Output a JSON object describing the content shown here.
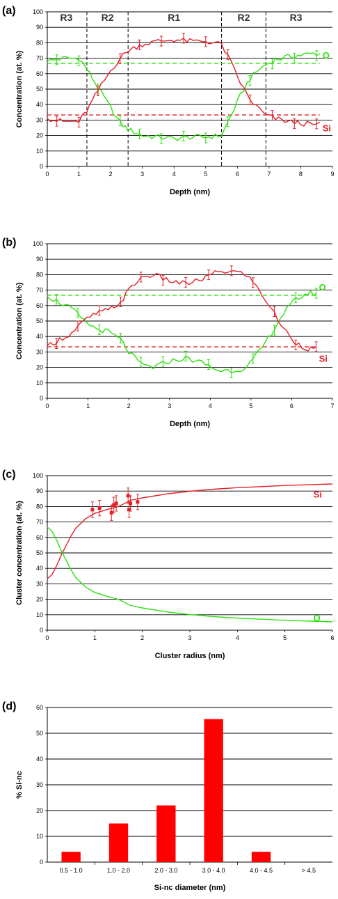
{
  "colors": {
    "si": "#e41e26",
    "o": "#2ee00f",
    "bar": "#ff0000",
    "grid": "#000000"
  },
  "chart_data": [
    {
      "id": "a",
      "panel_label": "(a)",
      "type": "line",
      "xlabel": "Depth (nm)",
      "ylabel": "Concentration (at. %)",
      "xlim": [
        0,
        9
      ],
      "ylim": [
        0,
        100
      ],
      "x_ticks": [
        "0",
        "1",
        "2",
        "3",
        "4",
        "5",
        "6",
        "7",
        "8",
        "9"
      ],
      "y_ticks": [
        "0",
        "10",
        "20",
        "30",
        "40",
        "50",
        "60",
        "70",
        "80",
        "90",
        "100"
      ],
      "grid": "horizontal",
      "region_lines": [
        1.25,
        2.55,
        5.5,
        6.9
      ],
      "regions": [
        {
          "label": "R3",
          "x": 0.6
        },
        {
          "label": "R2",
          "x": 1.9
        },
        {
          "label": "R1",
          "x": 4.0
        },
        {
          "label": "R2",
          "x": 6.2
        },
        {
          "label": "R3",
          "x": 7.85
        }
      ],
      "reference_lines": [
        {
          "series": "O",
          "y": 66.7,
          "x0": 0,
          "x1": 8.6
        },
        {
          "series": "Si",
          "y": 33.3,
          "x0": 0,
          "x1": 8.6
        }
      ],
      "series": [
        {
          "name": "O",
          "label": "O",
          "label_y": 72,
          "x": [
            0,
            0.5,
            1.0,
            1.25,
            1.6,
            2.0,
            2.3,
            2.55,
            3.0,
            3.5,
            4.0,
            4.5,
            5.0,
            5.5,
            5.8,
            6.1,
            6.4,
            6.7,
            6.9,
            7.2,
            7.6,
            8.0,
            8.4,
            8.6
          ],
          "y": [
            68,
            70,
            70,
            63,
            51,
            38,
            28,
            24,
            20,
            19,
            18,
            19,
            19,
            20,
            33,
            46,
            57,
            63,
            66,
            69,
            71,
            72,
            73,
            73
          ]
        },
        {
          "name": "Si",
          "label": "Si",
          "label_y": 25,
          "x": [
            0,
            0.5,
            1.0,
            1.25,
            1.6,
            2.0,
            2.3,
            2.55,
            3.0,
            3.5,
            4.0,
            4.5,
            5.0,
            5.5,
            5.8,
            6.1,
            6.4,
            6.7,
            6.9,
            7.2,
            7.6,
            8.0,
            8.4,
            8.6
          ],
          "y": [
            31,
            29,
            29,
            36,
            49,
            62,
            70,
            75,
            79,
            81,
            82,
            81,
            81,
            79,
            67,
            54,
            43,
            37,
            33,
            31,
            29,
            28,
            27,
            27
          ]
        }
      ]
    },
    {
      "id": "b",
      "panel_label": "(b)",
      "type": "line",
      "xlabel": "Depth (nm)",
      "ylabel": "Concentration (at. %)",
      "xlim": [
        0,
        7
      ],
      "ylim": [
        0,
        100
      ],
      "x_ticks": [
        "0",
        "1",
        "2",
        "3",
        "4",
        "5",
        "6",
        "7"
      ],
      "y_ticks": [
        "0",
        "10",
        "20",
        "30",
        "40",
        "50",
        "60",
        "70",
        "80",
        "90",
        "100"
      ],
      "grid": "horizontal",
      "reference_lines": [
        {
          "series": "O",
          "y": 66.7,
          "x0": 0,
          "x1": 6.6
        },
        {
          "series": "Si",
          "y": 33.3,
          "x0": 0,
          "x1": 6.6
        }
      ],
      "series": [
        {
          "name": "O",
          "label": "O",
          "label_y": 72,
          "x": [
            0,
            0.3,
            0.6,
            0.9,
            1.2,
            1.5,
            1.8,
            2.0,
            2.3,
            2.6,
            3.0,
            3.4,
            3.8,
            4.2,
            4.6,
            4.9,
            5.2,
            5.5,
            5.8,
            6.1,
            6.4,
            6.6
          ],
          "y": [
            66,
            62,
            58,
            50,
            45,
            43,
            38,
            30,
            22,
            20,
            24,
            26,
            23,
            18,
            18,
            20,
            30,
            42,
            55,
            64,
            68,
            68
          ]
        },
        {
          "name": "Si",
          "label": "Si",
          "label_y": 26,
          "x": [
            0,
            0.3,
            0.6,
            0.9,
            1.2,
            1.5,
            1.8,
            2.0,
            2.3,
            2.6,
            3.0,
            3.4,
            3.8,
            4.2,
            4.6,
            4.9,
            5.2,
            5.5,
            5.8,
            6.1,
            6.4,
            6.6
          ],
          "y": [
            34,
            38,
            42,
            50,
            55,
            57,
            62,
            70,
            78,
            80,
            76,
            74,
            77,
            82,
            82,
            80,
            70,
            58,
            45,
            36,
            32,
            32
          ]
        }
      ]
    },
    {
      "id": "c",
      "panel_label": "(c)",
      "type": "line",
      "xlabel": "Cluster radius (nm)",
      "ylabel": "Cluster concentration (at. %)",
      "xlim": [
        0,
        6
      ],
      "ylim": [
        0,
        100
      ],
      "x_ticks": [
        "0",
        "1",
        "2",
        "3",
        "4",
        "5",
        "6"
      ],
      "y_ticks": [
        "0",
        "10",
        "20",
        "30",
        "40",
        "50",
        "60",
        "70",
        "80",
        "90",
        "100"
      ],
      "grid": "horizontal",
      "series": [
        {
          "name": "Si",
          "label": "Si",
          "label_x": 5.6,
          "label_y": 88,
          "x": [
            0,
            0.1,
            0.2,
            0.3,
            0.4,
            0.5,
            0.6,
            0.8,
            1.0,
            1.25,
            1.5,
            1.75,
            2.0,
            2.5,
            3.0,
            3.5,
            4.0,
            4.5,
            5.0,
            5.5,
            6.0
          ],
          "y": [
            33.3,
            36,
            42,
            49,
            55,
            61,
            66,
            72,
            75.6,
            78,
            80,
            84,
            85.6,
            88.1,
            89.9,
            91.2,
            92.2,
            92.9,
            93.6,
            94.1,
            94.6
          ]
        },
        {
          "name": "O",
          "label": "O",
          "label_x": 5.6,
          "label_y": 8,
          "x": [
            0,
            0.1,
            0.2,
            0.3,
            0.4,
            0.5,
            0.6,
            0.8,
            1.0,
            1.25,
            1.5,
            1.75,
            2.0,
            2.5,
            3.0,
            3.5,
            4.0,
            4.5,
            5.0,
            5.5,
            6.0
          ],
          "y": [
            66.7,
            64,
            58,
            51,
            45,
            39,
            34,
            28,
            24.4,
            22,
            20,
            16,
            14.4,
            11.9,
            10.1,
            8.8,
            7.8,
            7.1,
            6.4,
            5.9,
            5.4
          ]
        }
      ],
      "points": {
        "series": "Si",
        "x": [
          0.95,
          1.1,
          1.35,
          1.4,
          1.45,
          1.7,
          1.72,
          1.75,
          1.9
        ],
        "y": [
          78,
          79,
          76,
          81,
          82,
          87,
          78,
          82,
          83
        ],
        "err": [
          5,
          5,
          5,
          5,
          5,
          5,
          5,
          5,
          5
        ]
      }
    },
    {
      "id": "d",
      "panel_label": "(d)",
      "type": "bar",
      "xlabel": "Si-nc diameter (nm)",
      "ylabel": "% Si-nc",
      "ylim": [
        0,
        60
      ],
      "y_ticks": [
        "0",
        "10",
        "20",
        "30",
        "40",
        "50",
        "60"
      ],
      "grid": "horizontal",
      "categories": [
        "0.5 - 1.0",
        "1.0 - 2.0",
        "2.0 - 3.0",
        "3.0 - 4.0",
        "4.0 - 4.5",
        "> 4.5"
      ],
      "values": [
        4,
        15,
        22,
        55.5,
        4,
        0
      ]
    }
  ]
}
